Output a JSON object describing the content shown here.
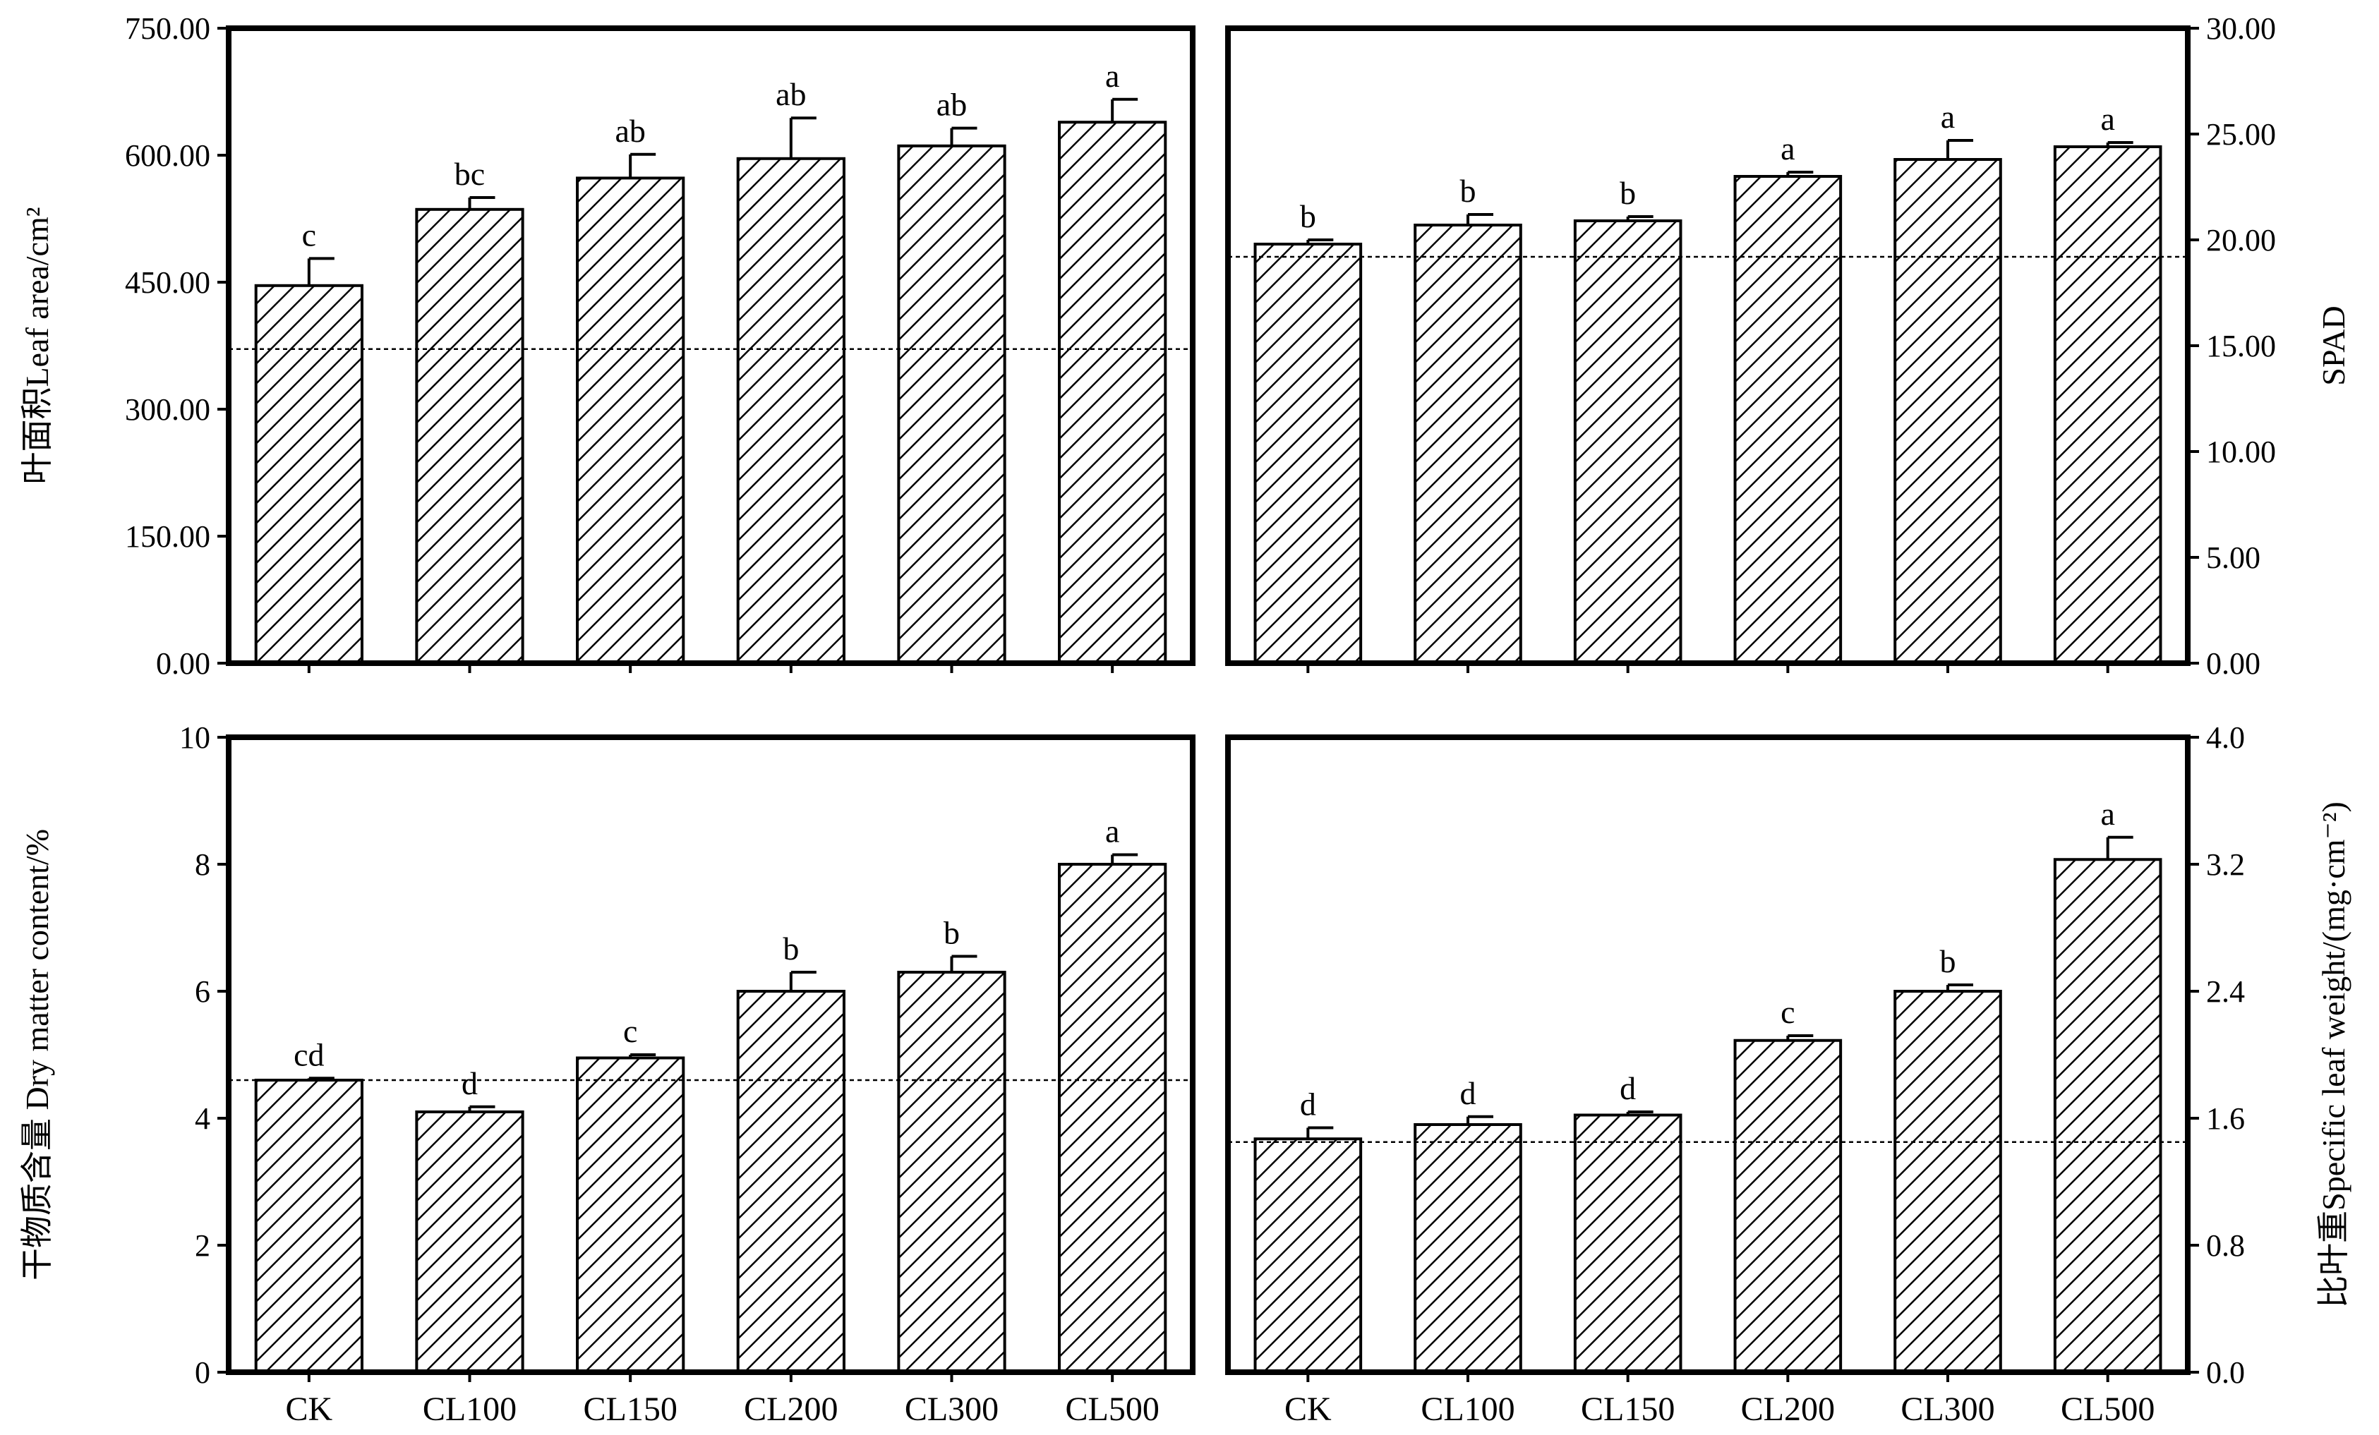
{
  "chart_data": [
    {
      "type": "bar",
      "categories": [
        "CK",
        "CL100",
        "CL150",
        "CL200",
        "CL300",
        "CL500"
      ],
      "values": [
        446,
        536,
        573,
        596,
        611,
        639
      ],
      "errors": [
        32,
        14,
        28,
        48,
        21,
        27
      ],
      "sig_labels": [
        "c",
        "bc",
        "ab",
        "ab",
        "ab",
        "a"
      ],
      "reference_line": 371,
      "ylabel": "叶面积Leaf area/cm²",
      "ylim": [
        0,
        750
      ],
      "yticks": [
        "0.00",
        "150.00",
        "300.00",
        "450.00",
        "600.00",
        "750.00"
      ],
      "ytick_values": [
        0,
        150,
        300,
        450,
        600,
        750
      ],
      "y_axis_side": "left",
      "show_x_labels": false,
      "hatch": "diagonal"
    },
    {
      "type": "bar",
      "categories": [
        "CK",
        "CL100",
        "CL150",
        "CL200",
        "CL300",
        "CL500"
      ],
      "values": [
        19.8,
        20.7,
        20.9,
        23.0,
        23.8,
        24.4
      ],
      "errors": [
        0.2,
        0.5,
        0.2,
        0.2,
        0.9,
        0.2
      ],
      "sig_labels": [
        "b",
        "b",
        "b",
        "a",
        "a",
        "a"
      ],
      "reference_line": 19.2,
      "ylabel": "SPAD",
      "ylim": [
        0,
        30
      ],
      "yticks": [
        "0.00",
        "5.00",
        "10.00",
        "15.00",
        "20.00",
        "25.00",
        "30.00"
      ],
      "ytick_values": [
        0,
        5,
        10,
        15,
        20,
        25,
        30
      ],
      "y_axis_side": "right",
      "show_x_labels": false,
      "hatch": "diagonal"
    },
    {
      "type": "bar",
      "categories": [
        "CK",
        "CL100",
        "CL150",
        "CL200",
        "CL300",
        "CL500"
      ],
      "values": [
        4.6,
        4.1,
        4.95,
        6.0,
        6.3,
        8.0
      ],
      "errors": [
        0.03,
        0.08,
        0.05,
        0.3,
        0.25,
        0.15
      ],
      "sig_labels": [
        "cd",
        "d",
        "c",
        "b",
        "b",
        "a"
      ],
      "reference_line": 4.6,
      "ylabel": "干物质含量 Dry matter content/%",
      "ylim": [
        0,
        10
      ],
      "yticks": [
        "0",
        "2",
        "4",
        "6",
        "8",
        "10"
      ],
      "ytick_values": [
        0,
        2,
        4,
        6,
        8,
        10
      ],
      "y_axis_side": "left",
      "show_x_labels": true,
      "hatch": "diagonal"
    },
    {
      "type": "bar",
      "categories": [
        "CK",
        "CL100",
        "CL150",
        "CL200",
        "CL300",
        "CL500"
      ],
      "values": [
        1.47,
        1.56,
        1.62,
        2.09,
        2.4,
        3.23
      ],
      "errors": [
        0.07,
        0.05,
        0.02,
        0.03,
        0.04,
        0.14
      ],
      "sig_labels": [
        "d",
        "d",
        "d",
        "c",
        "b",
        "a"
      ],
      "reference_line": 1.45,
      "ylabel": "比叶重Specific leaf weight/(mg·cm⁻²)",
      "ylim": [
        0,
        4.0
      ],
      "yticks": [
        "0.0",
        "0.8",
        "1.6",
        "2.4",
        "3.2",
        "4.0"
      ],
      "ytick_values": [
        0,
        0.8,
        1.6,
        2.4,
        3.2,
        4.0
      ],
      "y_axis_side": "right",
      "show_x_labels": true,
      "hatch": "diagonal"
    }
  ]
}
